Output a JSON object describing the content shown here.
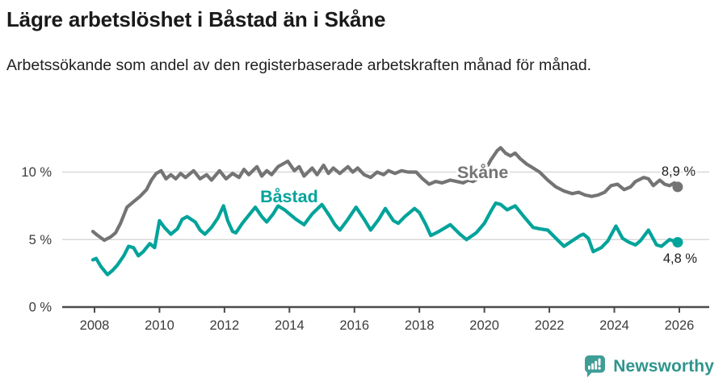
{
  "header": {
    "title": "Lägre arbetslöshet i Båstad än i Skåne",
    "subtitle": "Arbetssökande som andel av den registerbaserade arbetskraften månad för månad."
  },
  "chart_data": {
    "type": "line",
    "title": "Lägre arbetslöshet i Båstad än i Skåne",
    "subtitle": "Arbetssökande som andel av den registerbaserade arbetskraften månad för månad.",
    "unit": "%",
    "grid": true,
    "legend_position": "inline-series-labels",
    "x_axis": {
      "ticks": [
        2008,
        2010,
        2012,
        2014,
        2016,
        2018,
        2020,
        2022,
        2024,
        2026
      ],
      "range_years": [
        2008,
        2026
      ]
    },
    "y_axis": {
      "ticks": [
        {
          "value": 10,
          "label": "10 %",
          "grid": true
        },
        {
          "value": 5,
          "label": "5 %",
          "grid": true
        },
        {
          "value": 0,
          "label": "0 %",
          "grid": false
        }
      ],
      "range": [
        0,
        12.5
      ]
    },
    "colors": {
      "skane": "#747474",
      "bastad": "#00a39a"
    },
    "series": [
      {
        "name": "Skåne",
        "color": "#747474",
        "end_value": 8.9,
        "end_label": "8,9 %",
        "name_label_pos": {
          "year": 2019.95,
          "value": 9.55
        },
        "end_label_pos": {
          "year": 2026.5,
          "value": 9.73
        },
        "points": [
          [
            2007.95,
            5.6
          ],
          [
            2008.1,
            5.3
          ],
          [
            2008.3,
            4.95
          ],
          [
            2008.5,
            5.2
          ],
          [
            2008.65,
            5.5
          ],
          [
            2008.8,
            6.2
          ],
          [
            2009.0,
            7.4
          ],
          [
            2009.2,
            7.8
          ],
          [
            2009.4,
            8.2
          ],
          [
            2009.6,
            8.7
          ],
          [
            2009.75,
            9.4
          ],
          [
            2009.9,
            9.9
          ],
          [
            2010.05,
            10.1
          ],
          [
            2010.2,
            9.5
          ],
          [
            2010.35,
            9.8
          ],
          [
            2010.5,
            9.5
          ],
          [
            2010.65,
            9.9
          ],
          [
            2010.8,
            9.6
          ],
          [
            2011.05,
            10.1
          ],
          [
            2011.25,
            9.5
          ],
          [
            2011.45,
            9.8
          ],
          [
            2011.6,
            9.4
          ],
          [
            2011.85,
            10.1
          ],
          [
            2012.05,
            9.5
          ],
          [
            2012.25,
            9.9
          ],
          [
            2012.45,
            9.6
          ],
          [
            2012.6,
            10.2
          ],
          [
            2012.75,
            9.8
          ],
          [
            2013.0,
            10.4
          ],
          [
            2013.15,
            9.7
          ],
          [
            2013.3,
            10.1
          ],
          [
            2013.45,
            9.8
          ],
          [
            2013.65,
            10.4
          ],
          [
            2013.95,
            10.8
          ],
          [
            2014.15,
            10.1
          ],
          [
            2014.3,
            10.4
          ],
          [
            2014.45,
            9.7
          ],
          [
            2014.7,
            10.3
          ],
          [
            2014.85,
            9.8
          ],
          [
            2015.05,
            10.5
          ],
          [
            2015.2,
            9.9
          ],
          [
            2015.35,
            10.3
          ],
          [
            2015.55,
            9.9
          ],
          [
            2015.8,
            10.4
          ],
          [
            2015.95,
            10.0
          ],
          [
            2016.1,
            10.3
          ],
          [
            2016.3,
            9.8
          ],
          [
            2016.5,
            9.6
          ],
          [
            2016.7,
            10.0
          ],
          [
            2016.9,
            9.8
          ],
          [
            2017.05,
            10.1
          ],
          [
            2017.25,
            9.9
          ],
          [
            2017.45,
            10.1
          ],
          [
            2017.65,
            10.0
          ],
          [
            2017.9,
            10.0
          ],
          [
            2018.1,
            9.5
          ],
          [
            2018.3,
            9.1
          ],
          [
            2018.5,
            9.3
          ],
          [
            2018.7,
            9.2
          ],
          [
            2018.95,
            9.4
          ],
          [
            2019.15,
            9.3
          ],
          [
            2019.35,
            9.2
          ],
          [
            2019.5,
            9.4
          ],
          [
            2019.65,
            9.3
          ],
          [
            2019.85,
            9.6
          ],
          [
            2020.0,
            10.0
          ],
          [
            2020.2,
            10.9
          ],
          [
            2020.4,
            11.6
          ],
          [
            2020.5,
            11.8
          ],
          [
            2020.65,
            11.4
          ],
          [
            2020.8,
            11.2
          ],
          [
            2020.95,
            11.4
          ],
          [
            2021.1,
            11.0
          ],
          [
            2021.3,
            10.6
          ],
          [
            2021.5,
            10.3
          ],
          [
            2021.7,
            10.0
          ],
          [
            2021.95,
            9.4
          ],
          [
            2022.2,
            8.9
          ],
          [
            2022.45,
            8.6
          ],
          [
            2022.7,
            8.4
          ],
          [
            2022.9,
            8.5
          ],
          [
            2023.1,
            8.3
          ],
          [
            2023.3,
            8.2
          ],
          [
            2023.5,
            8.3
          ],
          [
            2023.7,
            8.5
          ],
          [
            2023.9,
            9.0
          ],
          [
            2024.1,
            9.1
          ],
          [
            2024.3,
            8.7
          ],
          [
            2024.5,
            8.9
          ],
          [
            2024.65,
            9.3
          ],
          [
            2024.9,
            9.6
          ],
          [
            2025.05,
            9.5
          ],
          [
            2025.2,
            9.0
          ],
          [
            2025.4,
            9.4
          ],
          [
            2025.55,
            9.1
          ],
          [
            2025.7,
            9.0
          ],
          [
            2025.85,
            9.2
          ],
          [
            2025.95,
            8.9
          ]
        ]
      },
      {
        "name": "Båstad",
        "color": "#00a39a",
        "end_value": 4.8,
        "end_label": "4,8 %",
        "name_label_pos": {
          "year": 2013.99,
          "value": 7.76
        },
        "end_label_pos": {
          "year": 2026.55,
          "value": 3.28
        },
        "points": [
          [
            2007.95,
            3.5
          ],
          [
            2008.05,
            3.6
          ],
          [
            2008.2,
            3.0
          ],
          [
            2008.4,
            2.4
          ],
          [
            2008.55,
            2.7
          ],
          [
            2008.7,
            3.1
          ],
          [
            2008.9,
            3.8
          ],
          [
            2009.05,
            4.5
          ],
          [
            2009.2,
            4.4
          ],
          [
            2009.35,
            3.8
          ],
          [
            2009.5,
            4.1
          ],
          [
            2009.7,
            4.7
          ],
          [
            2009.85,
            4.4
          ],
          [
            2010.0,
            6.4
          ],
          [
            2010.15,
            5.9
          ],
          [
            2010.35,
            5.4
          ],
          [
            2010.55,
            5.8
          ],
          [
            2010.7,
            6.5
          ],
          [
            2010.85,
            6.7
          ],
          [
            2011.1,
            6.3
          ],
          [
            2011.25,
            5.7
          ],
          [
            2011.4,
            5.4
          ],
          [
            2011.6,
            5.9
          ],
          [
            2011.8,
            6.6
          ],
          [
            2011.97,
            7.5
          ],
          [
            2012.1,
            6.4
          ],
          [
            2012.25,
            5.6
          ],
          [
            2012.35,
            5.5
          ],
          [
            2012.55,
            6.2
          ],
          [
            2012.75,
            6.8
          ],
          [
            2012.95,
            7.4
          ],
          [
            2013.15,
            6.7
          ],
          [
            2013.3,
            6.3
          ],
          [
            2013.5,
            6.9
          ],
          [
            2013.65,
            7.5
          ],
          [
            2013.85,
            7.2
          ],
          [
            2014.2,
            6.5
          ],
          [
            2014.45,
            6.1
          ],
          [
            2014.7,
            6.9
          ],
          [
            2015.0,
            7.6
          ],
          [
            2015.25,
            6.7
          ],
          [
            2015.4,
            6.1
          ],
          [
            2015.55,
            5.7
          ],
          [
            2015.8,
            6.5
          ],
          [
            2016.05,
            7.4
          ],
          [
            2016.3,
            6.5
          ],
          [
            2016.5,
            5.7
          ],
          [
            2016.75,
            6.5
          ],
          [
            2016.95,
            7.3
          ],
          [
            2017.2,
            6.4
          ],
          [
            2017.35,
            6.2
          ],
          [
            2017.55,
            6.7
          ],
          [
            2017.85,
            7.3
          ],
          [
            2018.0,
            7.0
          ],
          [
            2018.2,
            6.1
          ],
          [
            2018.35,
            5.3
          ],
          [
            2018.6,
            5.6
          ],
          [
            2018.95,
            6.1
          ],
          [
            2019.25,
            5.4
          ],
          [
            2019.45,
            5.0
          ],
          [
            2019.75,
            5.5
          ],
          [
            2020.0,
            6.2
          ],
          [
            2020.2,
            7.1
          ],
          [
            2020.35,
            7.7
          ],
          [
            2020.5,
            7.6
          ],
          [
            2020.7,
            7.2
          ],
          [
            2020.95,
            7.5
          ],
          [
            2021.25,
            6.6
          ],
          [
            2021.5,
            5.9
          ],
          [
            2021.7,
            5.8
          ],
          [
            2021.95,
            5.7
          ],
          [
            2022.2,
            5.1
          ],
          [
            2022.45,
            4.5
          ],
          [
            2022.7,
            4.9
          ],
          [
            2022.95,
            5.3
          ],
          [
            2023.05,
            5.4
          ],
          [
            2023.2,
            5.1
          ],
          [
            2023.35,
            4.1
          ],
          [
            2023.6,
            4.4
          ],
          [
            2023.8,
            4.9
          ],
          [
            2024.05,
            6.0
          ],
          [
            2024.25,
            5.1
          ],
          [
            2024.45,
            4.8
          ],
          [
            2024.65,
            4.6
          ],
          [
            2024.8,
            4.9
          ],
          [
            2025.05,
            5.7
          ],
          [
            2025.3,
            4.6
          ],
          [
            2025.45,
            4.5
          ],
          [
            2025.7,
            5.0
          ],
          [
            2025.95,
            4.8
          ]
        ]
      }
    ]
  },
  "footer": {
    "brand": "Newsworthy",
    "brand_color": "#2f948d",
    "icon_color": "#3f9d96"
  }
}
